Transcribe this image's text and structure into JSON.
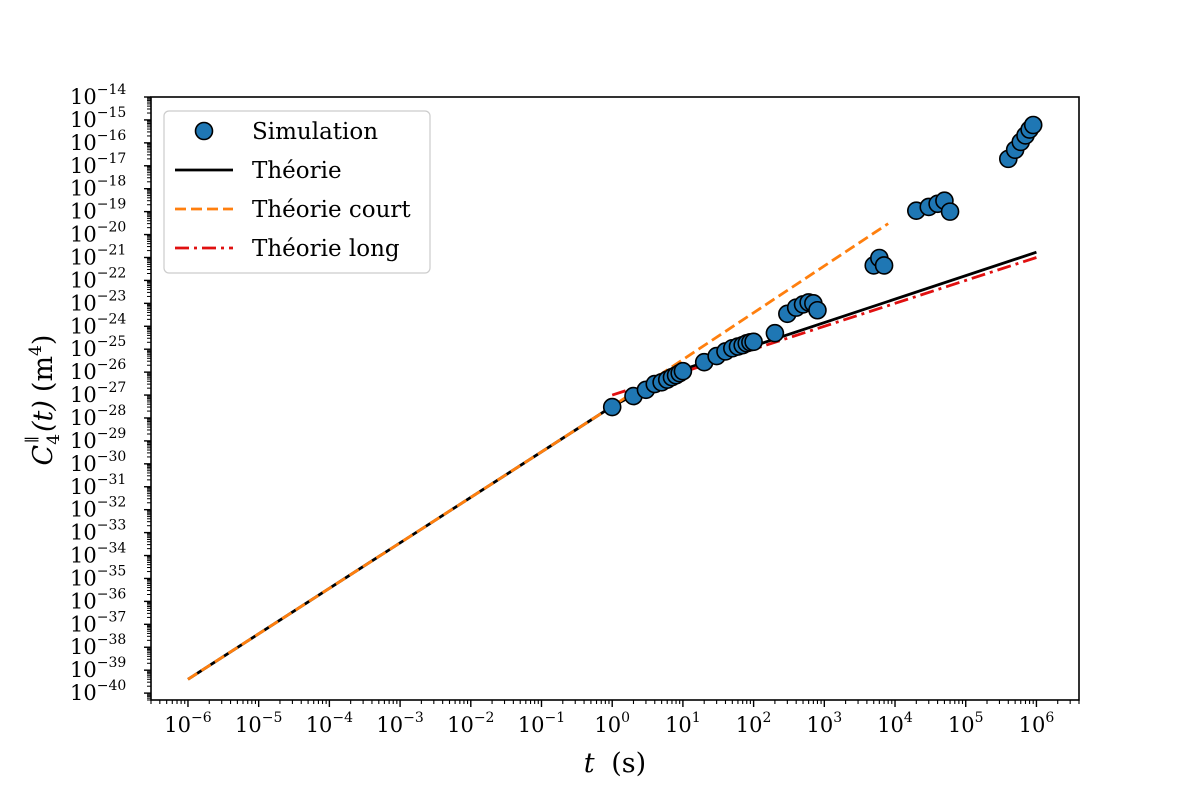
{
  "chart_data": {
    "type": "scatter",
    "xscale": "log",
    "yscale": "log",
    "xlim": [
      3e-07,
      4000000.0
    ],
    "ylim": [
      5e-41,
      1e-14
    ],
    "xlabel": {
      "main": "t",
      "unit": "(s)"
    },
    "ylabel": {
      "main": "C",
      "sub": "4",
      "sup": "∥",
      "arg": "(t)",
      "unit": "(m",
      "unit_exp": "4",
      "unit_close": ")"
    },
    "xticks": [
      {
        "base": "10",
        "exp": "−6"
      },
      {
        "base": "10",
        "exp": "−5"
      },
      {
        "base": "10",
        "exp": "−4"
      },
      {
        "base": "10",
        "exp": "−3"
      },
      {
        "base": "10",
        "exp": "−2"
      },
      {
        "base": "10",
        "exp": "−1"
      },
      {
        "base": "10",
        "exp": "0"
      },
      {
        "base": "10",
        "exp": "1"
      },
      {
        "base": "10",
        "exp": "2"
      },
      {
        "base": "10",
        "exp": "3"
      },
      {
        "base": "10",
        "exp": "4"
      },
      {
        "base": "10",
        "exp": "5"
      },
      {
        "base": "10",
        "exp": "6"
      }
    ],
    "yticks": [
      {
        "base": "10",
        "exp": "−40"
      },
      {
        "base": "10",
        "exp": "−39"
      },
      {
        "base": "10",
        "exp": "−38"
      },
      {
        "base": "10",
        "exp": "−37"
      },
      {
        "base": "10",
        "exp": "−36"
      },
      {
        "base": "10",
        "exp": "−35"
      },
      {
        "base": "10",
        "exp": "−34"
      },
      {
        "base": "10",
        "exp": "−33"
      },
      {
        "base": "10",
        "exp": "−32"
      },
      {
        "base": "10",
        "exp": "−31"
      },
      {
        "base": "10",
        "exp": "−30"
      },
      {
        "base": "10",
        "exp": "−29"
      },
      {
        "base": "10",
        "exp": "−28"
      },
      {
        "base": "10",
        "exp": "−27"
      },
      {
        "base": "10",
        "exp": "−26"
      },
      {
        "base": "10",
        "exp": "−25"
      },
      {
        "base": "10",
        "exp": "−24"
      },
      {
        "base": "10",
        "exp": "−23"
      },
      {
        "base": "10",
        "exp": "−22"
      },
      {
        "base": "10",
        "exp": "−21"
      },
      {
        "base": "10",
        "exp": "−20"
      },
      {
        "base": "10",
        "exp": "−19"
      },
      {
        "base": "10",
        "exp": "−18"
      },
      {
        "base": "10",
        "exp": "−17"
      },
      {
        "base": "10",
        "exp": "−16"
      },
      {
        "base": "10",
        "exp": "−15"
      },
      {
        "base": "10",
        "exp": "−14"
      }
    ],
    "legend_position": "top-left",
    "series": [
      {
        "name": "Simulation",
        "kind": "scatter",
        "color": "#1f77b4",
        "edgecolor": "#000000",
        "points": [
          [
            1,
            3e-28
          ],
          [
            2,
            9e-28
          ],
          [
            3,
            1.7e-27
          ],
          [
            4,
            3e-27
          ],
          [
            5,
            3.6e-27
          ],
          [
            6,
            4.7e-27
          ],
          [
            7,
            6e-27
          ],
          [
            8,
            7.3e-27
          ],
          [
            9,
            9e-27
          ],
          [
            10,
            1.1e-26
          ],
          [
            20,
            2.7e-26
          ],
          [
            30,
            5e-26
          ],
          [
            40,
            8e-26
          ],
          [
            50,
            1.1e-25
          ],
          [
            60,
            1.3e-25
          ],
          [
            70,
            1.5e-25
          ],
          [
            80,
            1.8e-25
          ],
          [
            90,
            2e-25
          ],
          [
            100,
            2.1e-25
          ],
          [
            200,
            5e-25
          ],
          [
            300,
            3.5e-24
          ],
          [
            400,
            6.5e-24
          ],
          [
            500,
            9e-24
          ],
          [
            600,
            1.1e-23
          ],
          [
            700,
            1e-23
          ],
          [
            800,
            5e-24
          ],
          [
            5000,
            4.5e-22
          ],
          [
            6000,
            9.5e-22
          ],
          [
            7000,
            4.5e-22
          ],
          [
            20000,
            1.1e-19
          ],
          [
            30000,
            1.6e-19
          ],
          [
            40000,
            2.2e-19
          ],
          [
            50000,
            3e-19
          ],
          [
            60000,
            1e-19
          ],
          [
            400000,
            2e-17
          ],
          [
            500000,
            5e-17
          ],
          [
            600000,
            1.1e-16
          ],
          [
            700000,
            2.1e-16
          ],
          [
            800000,
            3.8e-16
          ],
          [
            900000,
            6e-16
          ]
        ]
      },
      {
        "name": "Théorie",
        "kind": "line",
        "color": "#000000",
        "dash": "solid",
        "points": [
          [
            1e-06,
            4e-40
          ],
          [
            1,
            3.2e-28
          ],
          [
            10,
            1.3e-26
          ],
          [
            1000000.0,
            1.7e-21
          ]
        ]
      },
      {
        "name": "Théorie court",
        "kind": "line",
        "color": "#ff7f0e",
        "dash": "dashed",
        "points": [
          [
            1e-06,
            4e-40
          ],
          [
            1,
            3.2e-28
          ],
          [
            8000,
            3e-20
          ]
        ]
      },
      {
        "name": "Théorie long",
        "kind": "line",
        "color": "#e01010",
        "dash": "dashdot",
        "points": [
          [
            1,
            1e-27
          ],
          [
            1000000.0,
            1e-21
          ]
        ]
      }
    ]
  }
}
